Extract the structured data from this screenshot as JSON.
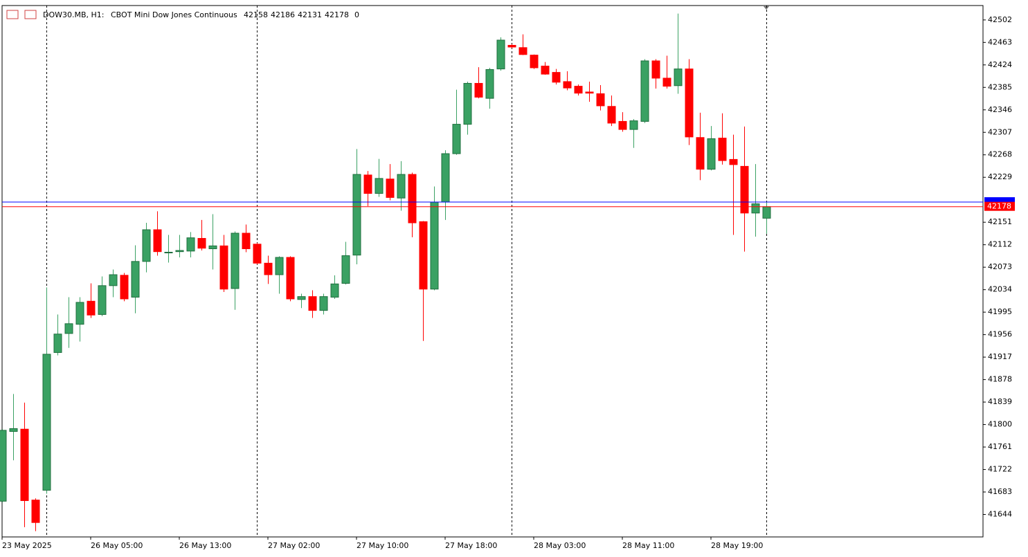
{
  "chart_data": {
    "type": "candlestick",
    "symbol": "DOW30.MB, H1:",
    "description": "CBOT Mini Dow Jones Continuous",
    "volume": 0,
    "categories": [
      "23 May 2025",
      null,
      null,
      null,
      null,
      null,
      null,
      null,
      "26 May 05:00",
      null,
      null,
      null,
      null,
      null,
      null,
      null,
      "26 May 13:00",
      null,
      null,
      null,
      null,
      null,
      null,
      null,
      "27 May 02:00",
      null,
      null,
      null,
      null,
      null,
      null,
      null,
      "27 May 10:00",
      null,
      null,
      null,
      null,
      null,
      null,
      null,
      "27 May 18:00",
      null,
      null,
      null,
      null,
      null,
      null,
      null,
      "28 May 03:00",
      null,
      null,
      null,
      null,
      null,
      null,
      null,
      "28 May 11:00",
      null,
      null,
      null,
      null,
      null,
      null,
      null,
      "28 May 19:00",
      null,
      null,
      null,
      null,
      null
    ],
    "open": [
      41667,
      41788,
      41792,
      41669,
      41686,
      41925,
      41958,
      41974,
      42014,
      41991,
      42041,
      42059,
      42021,
      42083,
      42138,
      42098,
      42100,
      42101,
      42123,
      42105,
      42110,
      42036,
      42132,
      42113,
      42080,
      42060,
      42090,
      42017,
      42022,
      41998,
      42021,
      42045,
      42094,
      42233,
      42201,
      42226,
      42193,
      42234,
      42152,
      42035,
      42186,
      42270,
      42321,
      42392,
      42366,
      42417,
      42458,
      42454,
      42441,
      42422,
      42411,
      42395,
      42387,
      42377,
      42374,
      42352,
      42326,
      42312,
      42326,
      42431,
      42401,
      42388,
      42417,
      42298,
      42243,
      42297,
      42260,
      42248,
      42167,
      42158
    ],
    "high": [
      41792,
      41853,
      41838,
      41672,
      42038,
      41991,
      42021,
      42021,
      42045,
      42057,
      42069,
      42063,
      42111,
      42150,
      42170,
      42129,
      42129,
      42134,
      42155,
      42165,
      42129,
      42135,
      42147,
      42115,
      42093,
      42092,
      42092,
      42027,
      42033,
      42027,
      42059,
      42117,
      42278,
      42240,
      42261,
      42252,
      42257,
      42237,
      42153,
      42213,
      42276,
      42381,
      42395,
      42420,
      42419,
      42472,
      42460,
      42477,
      42442,
      42429,
      42417,
      42413,
      42390,
      42395,
      42389,
      42371,
      42342,
      42330,
      42434,
      42434,
      42440,
      42513,
      42434,
      42341,
      42318,
      42340,
      42303,
      42317,
      42252,
      42186
    ],
    "low": [
      41665,
      41738,
      41622,
      41615,
      41680,
      41920,
      41933,
      41944,
      41985,
      41988,
      42021,
      42014,
      41993,
      42064,
      42093,
      42081,
      42090,
      42090,
      42102,
      42069,
      42030,
      41999,
      42099,
      42078,
      42044,
      42027,
      42014,
      42002,
      41985,
      41991,
      42018,
      42043,
      42078,
      42179,
      42195,
      42189,
      42171,
      42125,
      41945,
      42033,
      42155,
      42268,
      42303,
      42366,
      42348,
      42414,
      42453,
      42441,
      42417,
      42407,
      42390,
      42380,
      42371,
      42360,
      42345,
      42318,
      42308,
      42280,
      42323,
      42383,
      42383,
      42374,
      42285,
      42224,
      42241,
      42251,
      42129,
      42100,
      42126,
      42131
    ],
    "close": [
      41790,
      41793,
      41668,
      41630,
      41922,
      41957,
      41975,
      42012,
      41990,
      42041,
      42060,
      42018,
      42083,
      42138,
      42100,
      42099,
      42102,
      42124,
      42106,
      42110,
      42035,
      42132,
      42105,
      42080,
      42060,
      42090,
      42018,
      42022,
      41998,
      42022,
      42044,
      42093,
      42234,
      42201,
      42227,
      42194,
      42234,
      42150,
      42035,
      42186,
      42270,
      42321,
      42392,
      42368,
      42416,
      42467,
      42455,
      42442,
      42419,
      42408,
      42394,
      42384,
      42375,
      42375,
      42353,
      42323,
      42312,
      42327,
      42431,
      42401,
      42387,
      42417,
      42299,
      42243,
      42296,
      42258,
      42251,
      42167,
      42183,
      42178
    ],
    "up_color": "#3aa163",
    "down_color": "#ff0000",
    "ask": 42186,
    "ask_color": "#0000ff",
    "bid_color": "#ff0000",
    "period_separators": [
      4,
      23,
      46,
      69
    ],
    "ylim": [
      41605,
      42527
    ],
    "yticks": [
      42502,
      42463,
      42424,
      42385,
      42346,
      42307,
      42268,
      42229,
      42151,
      42112,
      42073,
      42034,
      41995,
      41956,
      41917,
      41878,
      41839,
      41800,
      41761,
      41722,
      41683,
      41644
    ]
  }
}
